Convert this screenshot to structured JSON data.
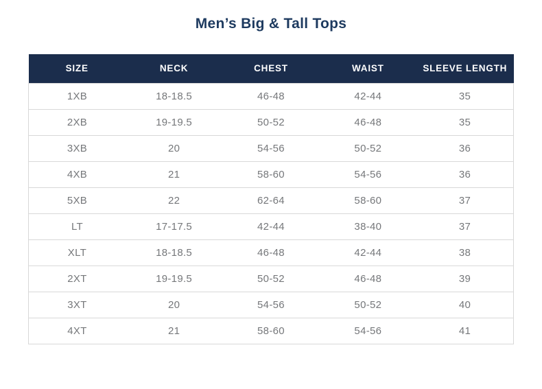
{
  "title": "Men’s Big & Tall Tops",
  "chart_data": {
    "type": "table",
    "title": "Men’s Big & Tall Tops",
    "columns": [
      "SIZE",
      "NECK",
      "CHEST",
      "WAIST",
      "SLEEVE LENGTH"
    ],
    "rows": [
      [
        "1XB",
        "18-18.5",
        "46-48",
        "42-44",
        "35"
      ],
      [
        "2XB",
        "19-19.5",
        "50-52",
        "46-48",
        "35"
      ],
      [
        "3XB",
        "20",
        "54-56",
        "50-52",
        "36"
      ],
      [
        "4XB",
        "21",
        "58-60",
        "54-56",
        "36"
      ],
      [
        "5XB",
        "22",
        "62-64",
        "58-60",
        "37"
      ],
      [
        "LT",
        "17-17.5",
        "42-44",
        "38-40",
        "37"
      ],
      [
        "XLT",
        "18-18.5",
        "46-48",
        "42-44",
        "38"
      ],
      [
        "2XT",
        "19-19.5",
        "50-52",
        "46-48",
        "39"
      ],
      [
        "3XT",
        "20",
        "54-56",
        "50-52",
        "40"
      ],
      [
        "4XT",
        "21",
        "58-60",
        "54-56",
        "41"
      ]
    ]
  },
  "colors": {
    "title_text": "#1d3a5f",
    "header_bg": "#1b2d4c",
    "header_text": "#ffffff",
    "cell_text": "#75777a",
    "border": "#d8d8d8"
  }
}
